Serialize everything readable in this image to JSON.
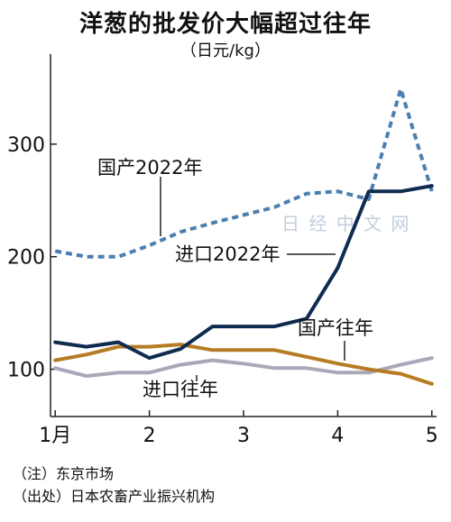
{
  "chart_data": {
    "type": "line",
    "title": "洋葱的批发价大幅超过往年",
    "unit": "（日元/kg）",
    "x_ticks": [
      {
        "x": 1,
        "label": "1月"
      },
      {
        "x": 2,
        "label": "2"
      },
      {
        "x": 3,
        "label": "3"
      },
      {
        "x": 4,
        "label": "4"
      },
      {
        "x": 5,
        "label": "5"
      }
    ],
    "y_ticks": [
      100,
      200,
      300
    ],
    "xlim": [
      0.95,
      5.05
    ],
    "ylim": [
      58,
      380
    ],
    "grid": false,
    "series": [
      {
        "name": "国产2022年",
        "color": "#4a7faf",
        "style": "dashed",
        "x": [
          1.0,
          1.33,
          1.67,
          2.0,
          2.33,
          2.67,
          3.0,
          3.33,
          3.67,
          4.0,
          4.33,
          4.67,
          5.0
        ],
        "y": [
          205,
          200,
          200,
          210,
          222,
          230,
          237,
          244,
          256,
          258,
          251,
          349,
          258
        ]
      },
      {
        "name": "进口2022年",
        "color": "#0f2b50",
        "style": "solid",
        "x": [
          1.0,
          1.33,
          1.67,
          2.0,
          2.33,
          2.67,
          3.0,
          3.33,
          3.67,
          4.0,
          4.33,
          4.67,
          5.0
        ],
        "y": [
          124,
          120,
          124,
          110,
          118,
          138,
          138,
          138,
          145,
          190,
          258,
          258,
          263
        ]
      },
      {
        "name": "国产往年",
        "color": "#b77b25",
        "style": "solid",
        "x": [
          1.0,
          1.33,
          1.67,
          2.0,
          2.33,
          2.67,
          3.0,
          3.33,
          3.67,
          4.0,
          4.33,
          4.67,
          5.0
        ],
        "y": [
          108,
          113,
          120,
          120,
          122,
          117,
          117,
          117,
          111,
          105,
          100,
          96,
          87
        ]
      },
      {
        "name": "进口往年",
        "color": "#a7a9b8",
        "style": "solid",
        "x": [
          1.0,
          1.33,
          1.67,
          2.0,
          2.33,
          2.67,
          3.0,
          3.33,
          3.67,
          4.0,
          4.33,
          4.67,
          5.0
        ],
        "y": [
          101,
          94,
          97,
          97,
          104,
          108,
          105,
          101,
          101,
          97,
          97,
          104,
          110
        ]
      }
    ],
    "notes": [
      "（注）东京市场",
      "（出处）日本农畜产业振兴机构"
    ]
  },
  "watermark": "日经中文网"
}
